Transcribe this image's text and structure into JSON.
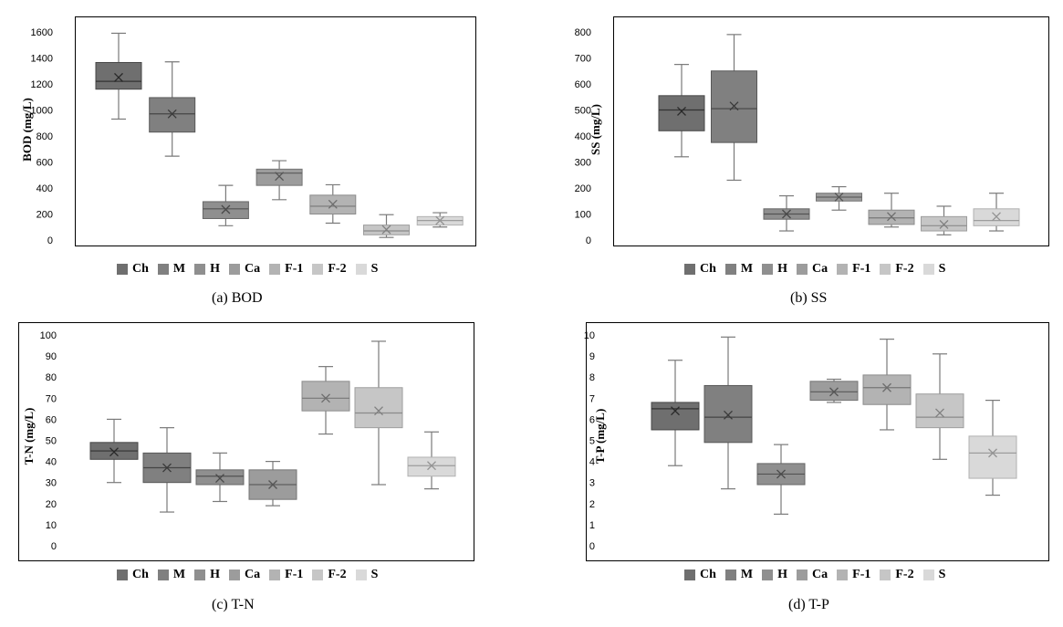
{
  "legend_colors": {
    "Ch": "#6f6f6f",
    "M": "#808080",
    "H": "#8f8f8f",
    "Ca": "#9c9c9c",
    "F-1": "#b3b3b3",
    "F-2": "#c6c6c6",
    "S": "#d9d9d9"
  },
  "chart_data": [
    {
      "type": "box",
      "caption": "(a)  BOD",
      "ylabel": "BOD (mg/L)",
      "ylim": [
        0,
        1600
      ],
      "yticks": [
        0,
        200,
        400,
        600,
        800,
        1000,
        1200,
        1400,
        1600
      ],
      "series": [
        {
          "name": "Ch",
          "min": 930,
          "q1": 1160,
          "median": 1220,
          "q3": 1365,
          "max": 1590,
          "mean": 1250
        },
        {
          "name": "M",
          "min": 645,
          "q1": 830,
          "median": 970,
          "q3": 1095,
          "max": 1370,
          "mean": 970
        },
        {
          "name": "H",
          "min": 110,
          "q1": 165,
          "median": 240,
          "q3": 295,
          "max": 420,
          "mean": 235
        },
        {
          "name": "Ca",
          "min": 310,
          "q1": 420,
          "median": 515,
          "q3": 545,
          "max": 610,
          "mean": 490
        },
        {
          "name": "F-1",
          "min": 130,
          "q1": 200,
          "median": 260,
          "q3": 345,
          "max": 425,
          "mean": 275
        },
        {
          "name": "F-2",
          "min": 20,
          "q1": 40,
          "median": 70,
          "q3": 115,
          "max": 195,
          "mean": 80
        },
        {
          "name": "S",
          "min": 100,
          "q1": 115,
          "median": 150,
          "q3": 180,
          "max": 210,
          "mean": 150
        }
      ]
    },
    {
      "type": "box",
      "caption": "(b)  SS",
      "ylabel": "SS (mg/L)",
      "ylim": [
        0,
        800
      ],
      "yticks": [
        0,
        100,
        200,
        300,
        400,
        500,
        600,
        700,
        800
      ],
      "series": [
        {
          "name": "Ch",
          "min": 320,
          "q1": 420,
          "median": 500,
          "q3": 555,
          "max": 675,
          "mean": 495
        },
        {
          "name": "M",
          "min": 230,
          "q1": 375,
          "median": 505,
          "q3": 650,
          "max": 790,
          "mean": 515
        },
        {
          "name": "H",
          "min": 35,
          "q1": 80,
          "median": 100,
          "q3": 120,
          "max": 170,
          "mean": 100
        },
        {
          "name": "Ca",
          "min": 115,
          "q1": 150,
          "median": 165,
          "q3": 180,
          "max": 205,
          "mean": 165
        },
        {
          "name": "F-1",
          "min": 50,
          "q1": 60,
          "median": 85,
          "q3": 115,
          "max": 180,
          "mean": 90
        },
        {
          "name": "F-2",
          "min": 20,
          "q1": 35,
          "median": 55,
          "q3": 90,
          "max": 130,
          "mean": 60
        },
        {
          "name": "S",
          "min": 35,
          "q1": 55,
          "median": 75,
          "q3": 120,
          "max": 180,
          "mean": 90
        }
      ]
    },
    {
      "type": "box",
      "caption": "(c)  T-N",
      "ylabel": "T-N (mg/L)",
      "ylim": [
        0,
        100
      ],
      "yticks": [
        0,
        10,
        20,
        30,
        40,
        50,
        60,
        70,
        80,
        90,
        100
      ],
      "series": [
        {
          "name": "Ch",
          "min": 30,
          "q1": 41,
          "median": 45,
          "q3": 49,
          "max": 60,
          "mean": 44.5
        },
        {
          "name": "M",
          "min": 16,
          "q1": 30,
          "median": 37,
          "q3": 44,
          "max": 56,
          "mean": 37
        },
        {
          "name": "H",
          "min": 21,
          "q1": 29,
          "median": 33,
          "q3": 36,
          "max": 44,
          "mean": 32
        },
        {
          "name": "Ca",
          "min": 19,
          "q1": 22,
          "median": 29,
          "q3": 36,
          "max": 40,
          "mean": 29
        },
        {
          "name": "F-1",
          "min": 53,
          "q1": 64,
          "median": 70,
          "q3": 78,
          "max": 85,
          "mean": 70
        },
        {
          "name": "F-2",
          "min": 29,
          "q1": 56,
          "median": 63,
          "q3": 75,
          "max": 97,
          "mean": 64
        },
        {
          "name": "S",
          "min": 27,
          "q1": 33,
          "median": 38,
          "q3": 42,
          "max": 54,
          "mean": 38
        }
      ]
    },
    {
      "type": "box",
      "caption": "(d)  T-P",
      "ylabel": "T-P (mg/L)",
      "ylim": [
        0,
        10
      ],
      "yticks": [
        0,
        1,
        2,
        3,
        4,
        5,
        6,
        7,
        8,
        9,
        10
      ],
      "series": [
        {
          "name": "Ch",
          "min": 3.8,
          "q1": 5.5,
          "median": 6.5,
          "q3": 6.8,
          "max": 8.8,
          "mean": 6.4
        },
        {
          "name": "M",
          "min": 2.7,
          "q1": 4.9,
          "median": 6.1,
          "q3": 7.6,
          "max": 9.9,
          "mean": 6.2
        },
        {
          "name": "H",
          "min": 1.5,
          "q1": 2.9,
          "median": 3.4,
          "q3": 3.9,
          "max": 4.8,
          "mean": 3.4
        },
        {
          "name": "Ca",
          "min": 6.8,
          "q1": 6.9,
          "median": 7.3,
          "q3": 7.8,
          "max": 7.9,
          "mean": 7.3
        },
        {
          "name": "F-1",
          "min": 5.5,
          "q1": 6.7,
          "median": 7.5,
          "q3": 8.1,
          "max": 9.8,
          "mean": 7.5
        },
        {
          "name": "F-2",
          "min": 4.1,
          "q1": 5.6,
          "median": 6.1,
          "q3": 7.2,
          "max": 9.1,
          "mean": 6.3
        },
        {
          "name": "S",
          "min": 2.4,
          "q1": 3.2,
          "median": 4.4,
          "q3": 5.2,
          "max": 6.9,
          "mean": 4.4
        }
      ]
    }
  ]
}
